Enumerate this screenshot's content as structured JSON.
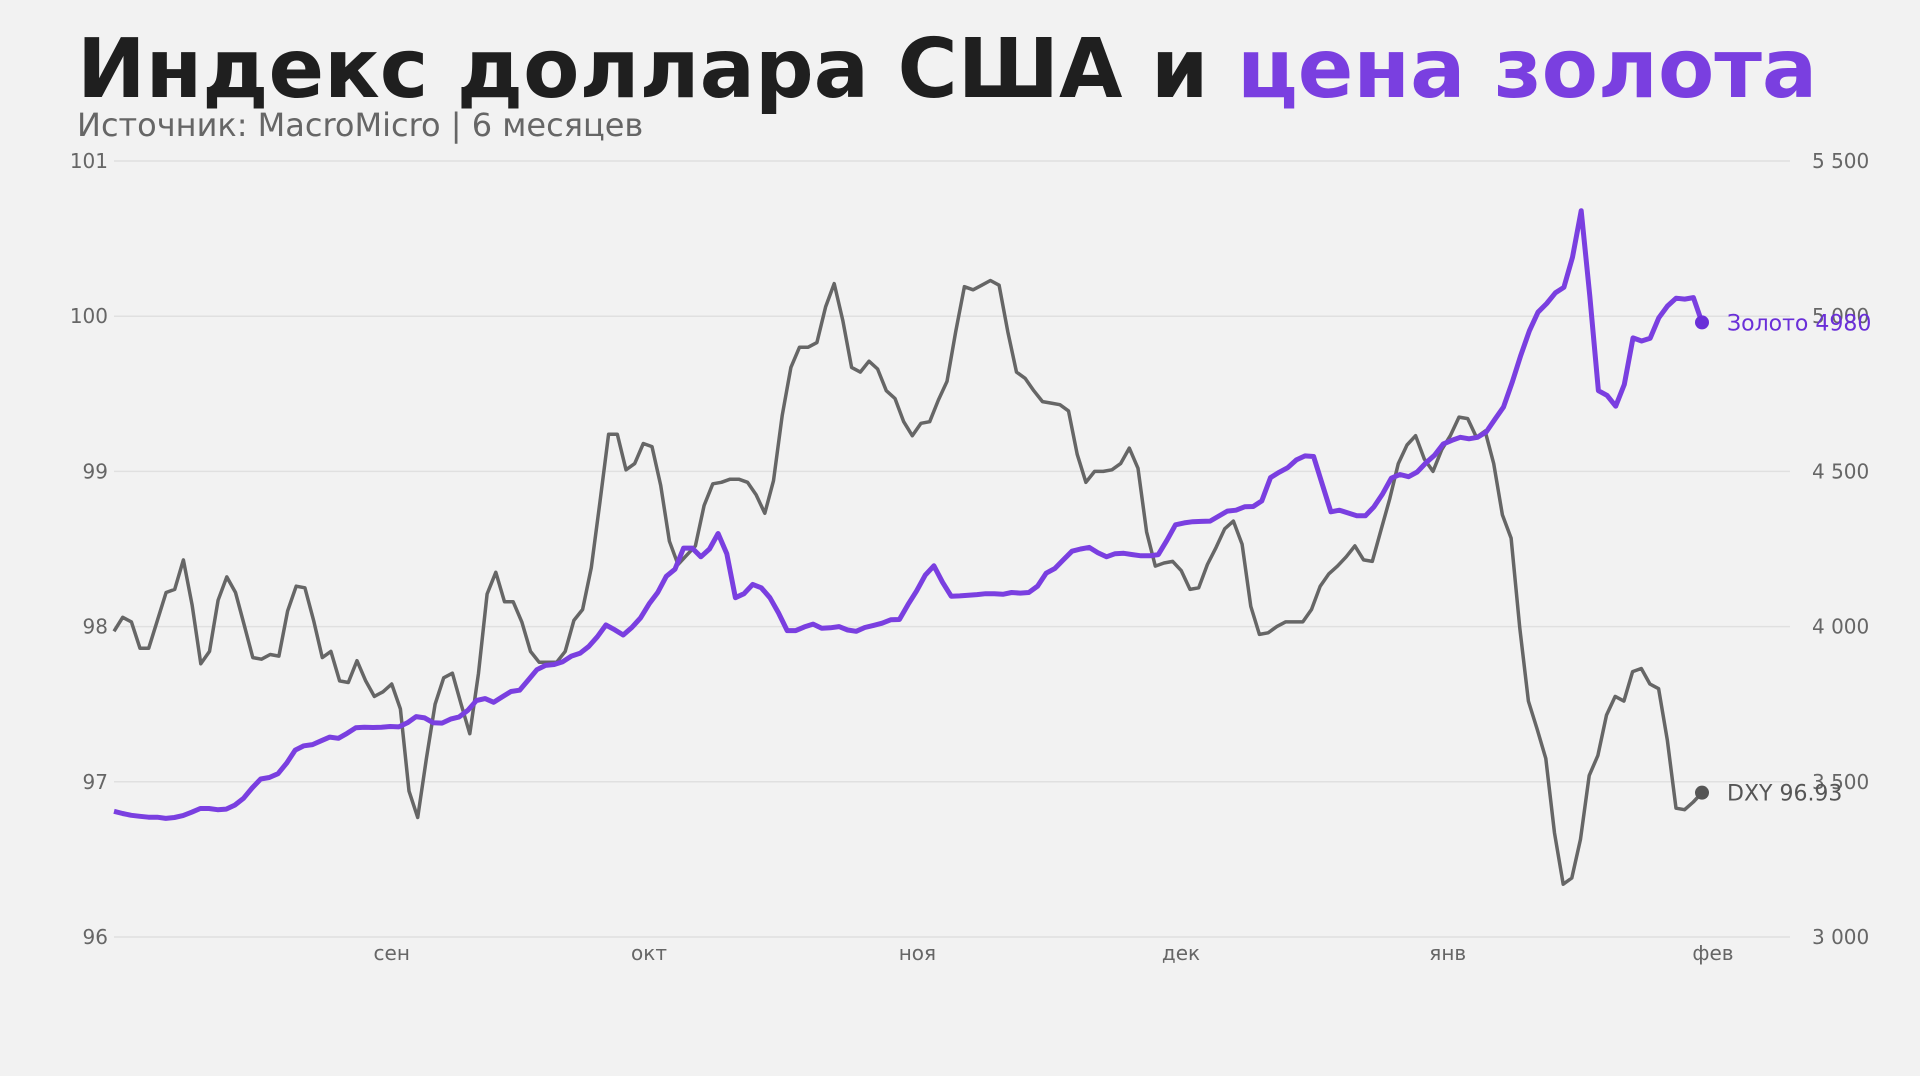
{
  "header": {
    "title_main": "Индекс доллара США и ",
    "title_accent": "цена золота",
    "subtitle": "Источник: MacroMicro | 6 месяцев"
  },
  "colors": {
    "background": "#f2f2f2",
    "dxy": "#666666",
    "gold": "#7a3fe0",
    "gold_label": "#6a2fd8",
    "dxy_label": "#555555",
    "grid": "#e0e0e0",
    "title": "#1f1f1f"
  },
  "chart_data": {
    "type": "line",
    "title": "Индекс доллара США и цена золота",
    "subtitle": "Источник: MacroMicro | 6 месяцев",
    "xlabel": "",
    "ylabel_left": "DXY",
    "ylabel_right": "Золото",
    "ylim_left": [
      96,
      101
    ],
    "ylim_right": [
      3000,
      5500
    ],
    "yticks_left": [
      "96",
      "97",
      "98",
      "99",
      "100",
      "101"
    ],
    "yticks_right": [
      "3 000",
      "3 500",
      "4 000",
      "4 500",
      "5 000",
      "5 500"
    ],
    "x_tick_labels": [
      "сен",
      "окт",
      "ноя",
      "дек",
      "янв",
      "фев"
    ],
    "x_tick_positions": [
      0.105,
      0.267,
      0.436,
      0.602,
      0.77,
      0.937
    ],
    "grid": true,
    "legend": "end-labels",
    "end_labels": {
      "gold": "Золото 4980",
      "dxy": "DXY 96.93"
    },
    "series": [
      {
        "name": "DXY",
        "axis": "left",
        "values": [
          97.97,
          98.06,
          98.03,
          97.86,
          97.86,
          98.04,
          98.22,
          98.24,
          98.43,
          98.14,
          97.76,
          97.84,
          98.17,
          98.32,
          98.22,
          98.01,
          97.8,
          97.79,
          97.82,
          97.81,
          98.1,
          98.26,
          98.25,
          98.04,
          97.8,
          97.84,
          97.65,
          97.64,
          97.78,
          97.65,
          97.55,
          97.58,
          97.63,
          97.47,
          96.94,
          96.77,
          97.15,
          97.5,
          97.67,
          97.7,
          97.5,
          97.31,
          97.7,
          98.21,
          98.35,
          98.16,
          98.16,
          98.03,
          97.84,
          97.77,
          97.77,
          97.77,
          97.84,
          98.04,
          98.11,
          98.38,
          98.8,
          99.24,
          99.24,
          99.01,
          99.05,
          99.18,
          99.16,
          98.91,
          98.55,
          98.4,
          98.46,
          98.52,
          98.78,
          98.92,
          98.93,
          98.95,
          98.95,
          98.93,
          98.85,
          98.73,
          98.94,
          99.36,
          99.67,
          99.8,
          99.8,
          99.83,
          100.06,
          100.21,
          99.97,
          99.67,
          99.64,
          99.71,
          99.66,
          99.52,
          99.47,
          99.32,
          99.23,
          99.31,
          99.32,
          99.46,
          99.58,
          99.9,
          100.19,
          100.17,
          100.2,
          100.23,
          100.2,
          99.9,
          99.64,
          99.6,
          99.52,
          99.45,
          99.44,
          99.43,
          99.39,
          99.11,
          98.93,
          99.0,
          99.0,
          99.01,
          99.05,
          99.15,
          99.02,
          98.61,
          98.39,
          98.41,
          98.42,
          98.36,
          98.24,
          98.25,
          98.4,
          98.51,
          98.63,
          98.68,
          98.53,
          98.13,
          97.95,
          97.96,
          98.0,
          98.03,
          98.03,
          98.03,
          98.11,
          98.26,
          98.34,
          98.39,
          98.45,
          98.52,
          98.43,
          98.42,
          98.62,
          98.82,
          99.05,
          99.17,
          99.23,
          99.08,
          99.0,
          99.14,
          99.23,
          99.35,
          99.34,
          99.22,
          99.26,
          99.05,
          98.72,
          98.57,
          97.99,
          97.52,
          97.34,
          97.15,
          96.67,
          96.34,
          96.38,
          96.63,
          97.04,
          97.17,
          97.43,
          97.55,
          97.52,
          97.71,
          97.73,
          97.63,
          97.6,
          97.27,
          96.83,
          96.82,
          96.87,
          96.93
        ]
      },
      {
        "name": "Золото",
        "axis": "right",
        "values": [
          3405,
          3398,
          3392,
          3389,
          3386,
          3386,
          3382,
          3385,
          3391,
          3402,
          3414,
          3414,
          3410,
          3412,
          3425,
          3447,
          3480,
          3509,
          3514,
          3526,
          3560,
          3602,
          3616,
          3620,
          3632,
          3644,
          3640,
          3656,
          3674,
          3676,
          3675,
          3676,
          3678,
          3677,
          3690,
          3710,
          3706,
          3690,
          3689,
          3702,
          3709,
          3730,
          3762,
          3768,
          3756,
          3774,
          3791,
          3795,
          3828,
          3861,
          3875,
          3878,
          3887,
          3905,
          3914,
          3936,
          3967,
          4005,
          3990,
          3973,
          3997,
          4028,
          4073,
          4110,
          4162,
          4185,
          4253,
          4253,
          4225,
          4250,
          4300,
          4235,
          4093,
          4106,
          4136,
          4125,
          4093,
          4044,
          3987,
          3987,
          3999,
          4008,
          3995,
          3996,
          4000,
          3989,
          3985,
          3997,
          4004,
          4011,
          4022,
          4023,
          4071,
          4115,
          4166,
          4196,
          4143,
          4098,
          4099,
          4101,
          4103,
          4106,
          4106,
          4104,
          4110,
          4108,
          4110,
          4130,
          4172,
          4187,
          4215,
          4243,
          4250,
          4255,
          4238,
          4225,
          4235,
          4236,
          4232,
          4228,
          4228,
          4232,
          4278,
          4328,
          4334,
          4338,
          4339,
          4340,
          4356,
          4372,
          4375,
          4386,
          4387,
          4405,
          4480,
          4497,
          4512,
          4537,
          4550,
          4548,
          4458,
          4370,
          4375,
          4366,
          4357,
          4357,
          4386,
          4428,
          4478,
          4490,
          4483,
          4498,
          4527,
          4552,
          4588,
          4600,
          4610,
          4605,
          4610,
          4627,
          4668,
          4707,
          4786,
          4874,
          4953,
          5013,
          5041,
          5075,
          5093,
          5190,
          5340,
          5065,
          4760,
          4745,
          4710,
          4780,
          4930,
          4920,
          4929,
          4995,
          5033,
          5058,
          5055,
          5060,
          4980
        ]
      }
    ]
  }
}
